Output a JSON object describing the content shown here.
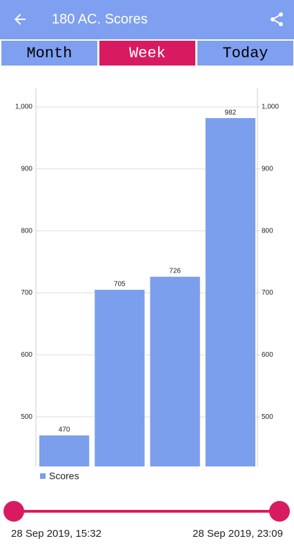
{
  "app_bar": {
    "title": "180 AC. Scores"
  },
  "tabs": {
    "labels": [
      "Month",
      "Week",
      "Today"
    ],
    "active": 1
  },
  "chart_data": {
    "type": "bar",
    "categories": [
      null,
      null,
      null,
      null
    ],
    "series": [
      {
        "name": "Scores",
        "color": "#7b9fec",
        "values": [
          470,
          705,
          726,
          982
        ]
      }
    ],
    "ylim": [
      420,
      1030
    ],
    "yticks": [
      500,
      600,
      700,
      800,
      900,
      {
        "value": 1000,
        "label": "1,000"
      }
    ],
    "y2lim": [
      420,
      1030
    ],
    "y2ticks": [
      500,
      600,
      700,
      800,
      900,
      {
        "value": 1000,
        "label": "1,000"
      }
    ],
    "grid": true,
    "legend": "bottom-left"
  },
  "range_slider": {
    "start_label": "28 Sep 2019, 15:32",
    "end_label": "28 Sep 2019, 23:09",
    "color": "#d81b60"
  }
}
